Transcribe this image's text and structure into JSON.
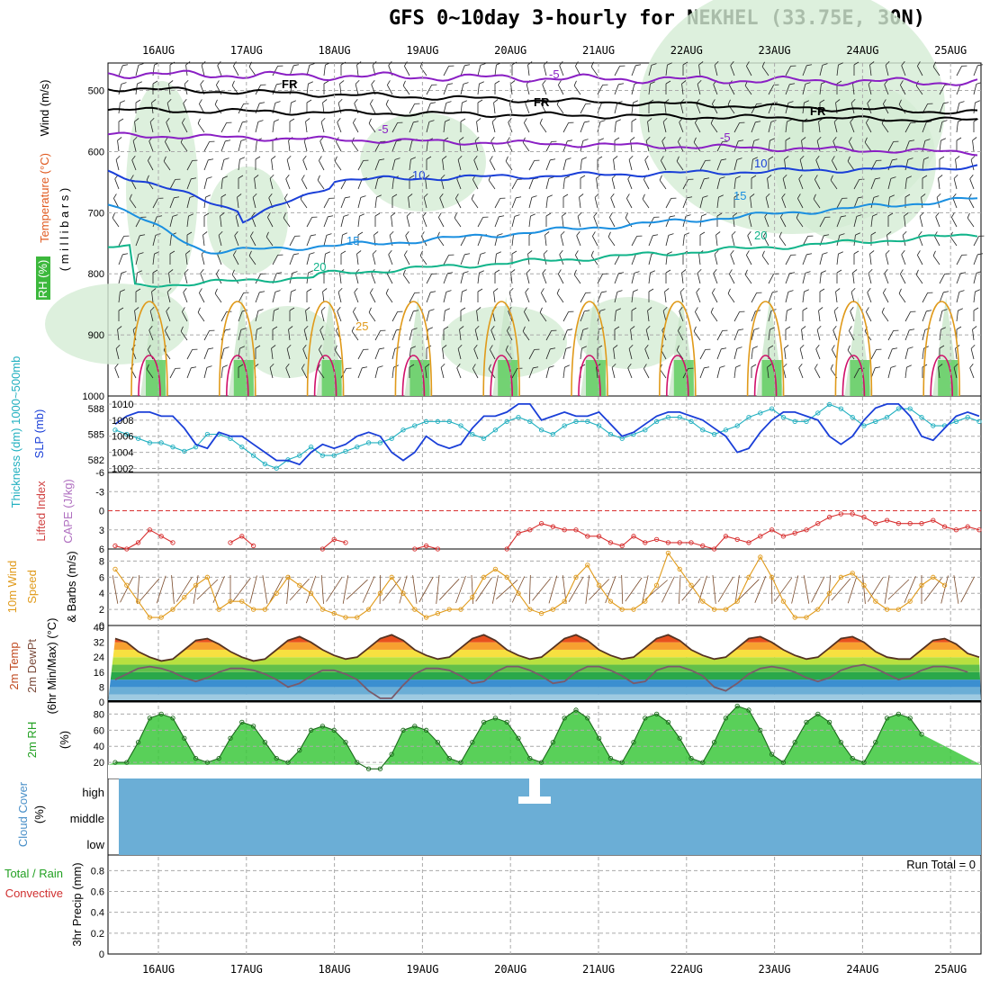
{
  "title": "GFS 0~10day 3-hourly for NEKHEL (33.75E, 30N)",
  "days": [
    "16AUG",
    "17AUG",
    "18AUG",
    "19AUG",
    "20AUG",
    "21AUG",
    "22AUG",
    "23AUG",
    "24AUG",
    "25AUG"
  ],
  "colors": {
    "temp_line": "#1a3fd8",
    "c5": "#8a1fc4",
    "c10": "#1a3fd8",
    "c15": "#1a8fe0",
    "c20": "#11b48a",
    "c25": "#e09a1a",
    "c30": "#d0106a",
    "fr": "#000000",
    "slp": "#1a3fd8",
    "thk": "#22b0c0",
    "cape": "#d83030",
    "wind10": "#e09a1a",
    "rh_green": "#22c022",
    "cloud": "#6baed6",
    "grid": "#aaaaaa"
  },
  "upper_panel": {
    "ylabel_wind": "Wind (m/s)",
    "ylabel_temp": "Temperature (°C)",
    "ylabel_rh": "RH (%)",
    "ylabel_mb": "( m i l l i b a r s )",
    "levels": [
      "500",
      "600",
      "700",
      "800",
      "900",
      "1000"
    ],
    "isotherm_labels": [
      "FR",
      "FR",
      "FR",
      "-5",
      "-5",
      "-5",
      "10",
      "10",
      "15",
      "15",
      "20",
      "20",
      "25"
    ]
  },
  "slp_panel": {
    "ylabel_thk": "Thickness (dm) 1000~500mb",
    "ylabel_slp": "SLP (mb)",
    "thk_ticks": [
      "588",
      "585",
      "582"
    ],
    "slp_ticks": [
      "1010",
      "1008",
      "1006",
      "1004",
      "1002"
    ]
  },
  "cape_panel": {
    "ylabel_li": "Lifted Index",
    "ylabel_cape": "CAPE (J/kg)",
    "li_ticks": [
      "-6",
      "-3",
      "0",
      "3",
      "6"
    ]
  },
  "wind_panel": {
    "ylabel_1": "10m Wind",
    "ylabel_2": "Speed",
    "ylabel_3": "& Barbs (m/s)",
    "ticks": [
      "8",
      "6",
      "4",
      "2",
      "0"
    ]
  },
  "temp_panel": {
    "ylabel_1": "2m Temp",
    "ylabel_2": "2m DewPt",
    "ylabel_3": "(6hr Min/Max) (°C)",
    "ticks": [
      "40",
      "32",
      "24",
      "16",
      "8",
      "0"
    ]
  },
  "rh_panel": {
    "ylabel_1": "2m RH",
    "ylabel_2": "(%)",
    "ticks": [
      "80",
      "60",
      "40",
      "20"
    ]
  },
  "cloud_panel": {
    "ylabel_1": "Cloud Cover",
    "ylabel_2": "(%)",
    "levels": [
      "high",
      "middle",
      "low"
    ]
  },
  "precip_panel": {
    "ylabel_1": "Total / Rain",
    "ylabel_2": "Convective",
    "ylabel_3": "3hr Precip (mm)",
    "ticks": [
      "0.8",
      "0.6",
      "0.4",
      "0.2",
      "0"
    ],
    "run_total": "Run Total = 0"
  },
  "chart_data": {
    "type": "line",
    "title": "GFS 0~10day 3-hourly for NEKHEL (33.75E, 30N)",
    "x_days": [
      "16AUG",
      "17AUG",
      "18AUG",
      "19AUG",
      "20AUG",
      "21AUG",
      "22AUG",
      "23AUG",
      "24AUG",
      "25AUG"
    ],
    "step_hours": 3,
    "slp_mb": [
      1007.5,
      1008.5,
      1009,
      1009,
      1008.5,
      1008.5,
      1007,
      1005,
      1004.5,
      1006.5,
      1006,
      1006,
      1005,
      1004,
      1003,
      1003,
      1002.5,
      1004,
      1005,
      1004.5,
      1005,
      1006,
      1006.5,
      1006,
      1004,
      1003,
      1004,
      1006,
      1005,
      1004.5,
      1005,
      1007,
      1008.5,
      1008.5,
      1009,
      1010,
      1010,
      1008,
      1008.5,
      1009,
      1008.5,
      1008.5,
      1009,
      1007.5,
      1006,
      1006.5,
      1007.5,
      1008.5,
      1009,
      1009,
      1008.5,
      1008,
      1007,
      1006,
      1004,
      1004.5,
      1006.5,
      1008,
      1009,
      1009,
      1008.5,
      1008,
      1006,
      1005,
      1006,
      1008,
      1009.5,
      1010,
      1010,
      1008.5,
      1006,
      1005.5,
      1007,
      1008.5,
      1009,
      1008.5
    ],
    "thickness_dm": [
      585.5,
      585,
      584.5,
      584,
      584,
      583.5,
      583,
      583.5,
      585,
      585,
      584.5,
      583.5,
      582.5,
      581.5,
      581,
      582,
      582.5,
      583.5,
      582.5,
      582.5,
      583,
      583.5,
      584,
      584,
      584.5,
      585.5,
      586,
      586.5,
      586.5,
      586.5,
      586,
      585,
      584.5,
      585.5,
      586.5,
      587,
      586.5,
      585.5,
      585,
      586,
      586.5,
      586.5,
      586,
      585,
      584.5,
      585,
      585.5,
      586.5,
      587,
      587,
      586.5,
      585.5,
      585,
      585.5,
      586,
      587,
      587.5,
      588,
      587,
      586.5,
      586.5,
      587.5,
      588.5,
      588,
      587,
      586,
      586.5,
      587,
      588,
      588,
      587,
      586,
      586,
      586.5,
      587,
      586.5
    ],
    "lifted_index": [
      5.5,
      6,
      5,
      3,
      4,
      5,
      null,
      null,
      null,
      null,
      5,
      4,
      5.5,
      null,
      null,
      null,
      null,
      null,
      6,
      4.5,
      5,
      null,
      null,
      null,
      null,
      null,
      6,
      5.5,
      6,
      null,
      null,
      null,
      null,
      null,
      6,
      3.5,
      3,
      2,
      2.5,
      3,
      3,
      4,
      4,
      5,
      5.5,
      4,
      5,
      4.5,
      5,
      5,
      5,
      5.5,
      6,
      4,
      4.5,
      5,
      4,
      3,
      4,
      3.5,
      3,
      2,
      1,
      0.5,
      0.5,
      1,
      2,
      1.5,
      2,
      2,
      2,
      1.5,
      2.5,
      3,
      2.5,
      3,
      2.5,
      2,
      4,
      3.5,
      3,
      2.5,
      2,
      1.5,
      1.5,
      2.5
    ],
    "wind10_ms": [
      7,
      5,
      3,
      1,
      1,
      2,
      3.5,
      5,
      6,
      2,
      3,
      3,
      2,
      2,
      4,
      6,
      5,
      4,
      2,
      1.5,
      1,
      1,
      2,
      4,
      6,
      4,
      2,
      1,
      1.5,
      2,
      2,
      3.5,
      6,
      7,
      6,
      4,
      2,
      1.5,
      2,
      3,
      6,
      7.5,
      5,
      3,
      2,
      2,
      3,
      5,
      9,
      7,
      5,
      3,
      2,
      2,
      3,
      6,
      8.5,
      6,
      3,
      1,
      1,
      2,
      4,
      6,
      6.5,
      5,
      3,
      2,
      2,
      3,
      5,
      6,
      5
    ],
    "temp2m_c": [
      34,
      32,
      27,
      24,
      22,
      23,
      28,
      33,
      34,
      31,
      27,
      24,
      22,
      23,
      28,
      33,
      35,
      32,
      28,
      25,
      23,
      24,
      29,
      34,
      36,
      33,
      28,
      25,
      23,
      24,
      29,
      34,
      36,
      33,
      28,
      25,
      23,
      24,
      29,
      34,
      36,
      33,
      28,
      25,
      23,
      24,
      29,
      34,
      36,
      33,
      28,
      25,
      23,
      24,
      29,
      34,
      35,
      32,
      28,
      25,
      23,
      24,
      29,
      34,
      35,
      32,
      27,
      24,
      23,
      23,
      28,
      33,
      34,
      31,
      26,
      24
    ],
    "dewpt2m_c": [
      12,
      15,
      18,
      19,
      18,
      16,
      13,
      11,
      13,
      16,
      18,
      18,
      17,
      15,
      12,
      8,
      10,
      14,
      17,
      17,
      15,
      12,
      6,
      2,
      2,
      9,
      15,
      18,
      18,
      17,
      14,
      10,
      11,
      16,
      19,
      19,
      17,
      14,
      10,
      11,
      16,
      19,
      19,
      17,
      14,
      10,
      11,
      17,
      19,
      19,
      17,
      14,
      8,
      6,
      10,
      15,
      18,
      19,
      18,
      16,
      13,
      11,
      13,
      17,
      19,
      20,
      18,
      15,
      12,
      14,
      17,
      19,
      19,
      18,
      16
    ],
    "rh2m_pct": [
      20,
      20,
      45,
      75,
      80,
      75,
      50,
      25,
      20,
      25,
      50,
      70,
      65,
      45,
      25,
      20,
      35,
      60,
      65,
      60,
      45,
      20,
      12,
      12,
      30,
      60,
      65,
      60,
      45,
      25,
      20,
      45,
      70,
      75,
      70,
      50,
      25,
      20,
      45,
      75,
      85,
      75,
      50,
      25,
      20,
      45,
      75,
      80,
      70,
      50,
      25,
      20,
      45,
      75,
      90,
      85,
      60,
      30,
      20,
      45,
      70,
      80,
      70,
      45,
      25,
      20,
      45,
      75,
      80,
      75,
      55
    ],
    "cloud_cover": {
      "high": "clear",
      "middle": "clear",
      "low": "clear",
      "feature": "small high cloud near 20AUG"
    },
    "precip_3hr_mm": 0,
    "run_total_mm": 0
  }
}
